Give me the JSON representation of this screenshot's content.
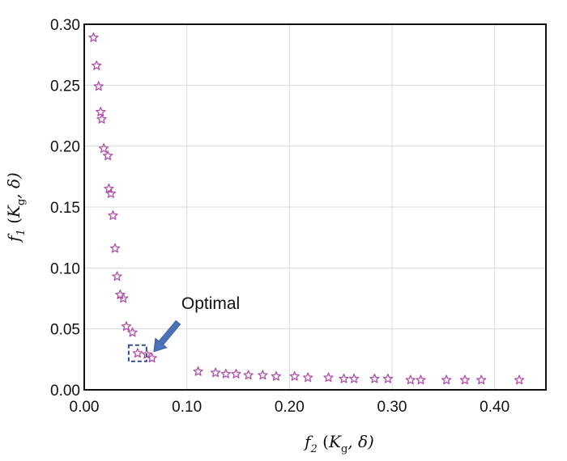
{
  "chart_data": {
    "type": "scatter",
    "title": "",
    "xlabel": {
      "symbol": "f",
      "sub": "2",
      "args_pre": " (",
      "k": "K",
      "k_sub": "g",
      "args_post": ", δ)"
    },
    "ylabel": {
      "symbol": "f",
      "sub": "1",
      "args_pre": " (",
      "k": "K",
      "k_sub": "g",
      "args_post": ", δ)"
    },
    "xlim": [
      0.0,
      0.45
    ],
    "ylim": [
      0.0,
      0.3
    ],
    "xticks": [
      0.0,
      0.1,
      0.2,
      0.3,
      0.4
    ],
    "xtick_labels": [
      "0.00",
      "0.10",
      "0.20",
      "0.30",
      "0.40"
    ],
    "yticks": [
      0.0,
      0.05,
      0.1,
      0.15,
      0.2,
      0.25,
      0.3
    ],
    "ytick_labels": [
      "0.00",
      "0.05",
      "0.10",
      "0.15",
      "0.20",
      "0.25",
      "0.30"
    ],
    "grid": true,
    "marker": "star",
    "marker_color": "#b04fa8",
    "series": [
      {
        "name": "",
        "points": [
          [
            0.009,
            0.289
          ],
          [
            0.012,
            0.266
          ],
          [
            0.014,
            0.249
          ],
          [
            0.016,
            0.228
          ],
          [
            0.017,
            0.222
          ],
          [
            0.019,
            0.198
          ],
          [
            0.023,
            0.192
          ],
          [
            0.024,
            0.165
          ],
          [
            0.026,
            0.161
          ],
          [
            0.028,
            0.143
          ],
          [
            0.03,
            0.116
          ],
          [
            0.032,
            0.093
          ],
          [
            0.035,
            0.078
          ],
          [
            0.038,
            0.075
          ],
          [
            0.041,
            0.052
          ],
          [
            0.047,
            0.047
          ],
          [
            0.052,
            0.03
          ],
          [
            0.061,
            0.029
          ],
          [
            0.066,
            0.026
          ],
          [
            0.111,
            0.015
          ],
          [
            0.128,
            0.014
          ],
          [
            0.138,
            0.013
          ],
          [
            0.148,
            0.013
          ],
          [
            0.16,
            0.012
          ],
          [
            0.174,
            0.012
          ],
          [
            0.187,
            0.011
          ],
          [
            0.205,
            0.011
          ],
          [
            0.218,
            0.01
          ],
          [
            0.238,
            0.01
          ],
          [
            0.253,
            0.009
          ],
          [
            0.263,
            0.009
          ],
          [
            0.283,
            0.009
          ],
          [
            0.296,
            0.009
          ],
          [
            0.318,
            0.008
          ],
          [
            0.328,
            0.008
          ],
          [
            0.353,
            0.008
          ],
          [
            0.371,
            0.008
          ],
          [
            0.387,
            0.008
          ],
          [
            0.424,
            0.008
          ]
        ]
      }
    ],
    "annotation": {
      "text": "Optimal",
      "point": [
        0.052,
        0.03
      ],
      "arrow_color": "#4a72b8",
      "box_color": "#2f4f8f"
    }
  }
}
